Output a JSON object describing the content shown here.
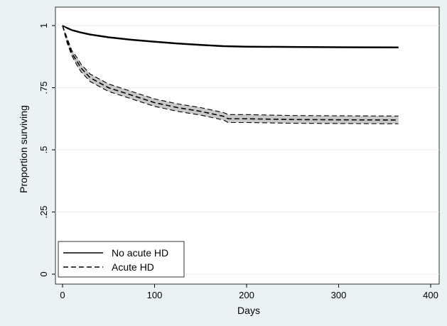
{
  "chart_data": {
    "type": "line",
    "xlabel": "Days",
    "ylabel": "Proportion surviving",
    "xlim": [
      0,
      400
    ],
    "ylim": [
      0,
      1
    ],
    "x_ticks": [
      0,
      100,
      200,
      300,
      400
    ],
    "x_tick_labels": [
      "0",
      "100",
      "200",
      "300",
      "400"
    ],
    "y_ticks": [
      0,
      0.25,
      0.5,
      0.75,
      1
    ],
    "y_tick_labels": [
      "0",
      ".25",
      ".5",
      ".75",
      "1"
    ],
    "grid": "horizontal",
    "legend_position": "bottom-left",
    "colors": {
      "background": "#eaf2f3",
      "plot": "#ffffff",
      "grid": "#eaf2f3",
      "band": "#c8c8c8",
      "line": "#000000"
    },
    "series": [
      {
        "name": "No acute HD",
        "style": "solid",
        "x": [
          0,
          5,
          10,
          20,
          30,
          50,
          75,
          100,
          125,
          150,
          175,
          200,
          250,
          300,
          365
        ],
        "y": [
          1.0,
          0.99,
          0.982,
          0.972,
          0.964,
          0.953,
          0.943,
          0.935,
          0.928,
          0.922,
          0.917,
          0.915,
          0.914,
          0.913,
          0.912
        ],
        "ci_lower": [
          1.0,
          0.988,
          0.98,
          0.97,
          0.962,
          0.951,
          0.941,
          0.933,
          0.926,
          0.92,
          0.915,
          0.913,
          0.912,
          0.911,
          0.91
        ],
        "ci_upper": [
          1.0,
          0.992,
          0.984,
          0.974,
          0.966,
          0.955,
          0.945,
          0.937,
          0.93,
          0.924,
          0.919,
          0.917,
          0.916,
          0.915,
          0.914
        ]
      },
      {
        "name": "Acute HD",
        "style": "dashed",
        "x": [
          0,
          5,
          10,
          15,
          20,
          30,
          40,
          50,
          75,
          100,
          125,
          150,
          175,
          180,
          200,
          250,
          300,
          365
        ],
        "y": [
          1.0,
          0.94,
          0.89,
          0.86,
          0.83,
          0.79,
          0.77,
          0.75,
          0.72,
          0.69,
          0.67,
          0.655,
          0.635,
          0.625,
          0.625,
          0.622,
          0.621,
          0.62
        ],
        "ci_lower": [
          1.0,
          0.93,
          0.88,
          0.845,
          0.815,
          0.775,
          0.755,
          0.735,
          0.705,
          0.675,
          0.655,
          0.64,
          0.62,
          0.61,
          0.61,
          0.607,
          0.606,
          0.605
        ],
        "ci_upper": [
          1.0,
          0.95,
          0.9,
          0.875,
          0.845,
          0.805,
          0.785,
          0.765,
          0.735,
          0.705,
          0.685,
          0.67,
          0.65,
          0.642,
          0.642,
          0.638,
          0.637,
          0.636
        ]
      }
    ]
  }
}
